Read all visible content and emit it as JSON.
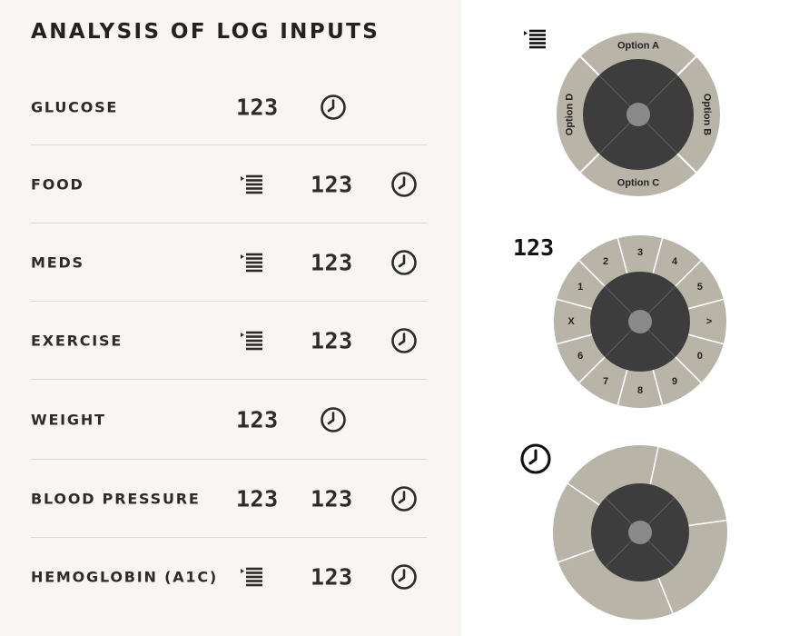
{
  "title": "ANALYSIS OF LOG INPUTS",
  "rows": [
    {
      "label": "GLUCOSE",
      "list": false,
      "values": [
        "123"
      ]
    },
    {
      "label": "FOOD",
      "list": true,
      "values": [
        "123"
      ]
    },
    {
      "label": "MEDS",
      "list": true,
      "values": [
        "123"
      ]
    },
    {
      "label": "EXERCISE",
      "list": true,
      "values": [
        "123"
      ]
    },
    {
      "label": "WEIGHT",
      "list": false,
      "values": [
        "123"
      ]
    },
    {
      "label": "BLOOD PRESSURE",
      "list": false,
      "values": [
        "123",
        "123"
      ]
    },
    {
      "label": "HEMOGLOBIN (A1C)",
      "list": true,
      "values": [
        "123"
      ]
    }
  ],
  "option_wheel": {
    "icon": "list-icon",
    "options": [
      "Option A",
      "Option B",
      "Option C",
      "Option D"
    ]
  },
  "number_wheel": {
    "icon_text": "123",
    "keys": [
      "3",
      "4",
      "5",
      ">",
      "0",
      "9",
      "8",
      "7",
      "6",
      "X",
      "1",
      "2"
    ]
  },
  "time_wheel": {
    "icon": "clock-icon"
  },
  "colors": {
    "left_bg": "#f9f5f2",
    "divider": "#dcd8d4",
    "text": "#2b2b2b",
    "wheel_outer": "#b8b4a8",
    "wheel_inner": "#3d3d3d",
    "wheel_hub": "#8a8a8a",
    "wheel_separator": "#ffffff"
  }
}
